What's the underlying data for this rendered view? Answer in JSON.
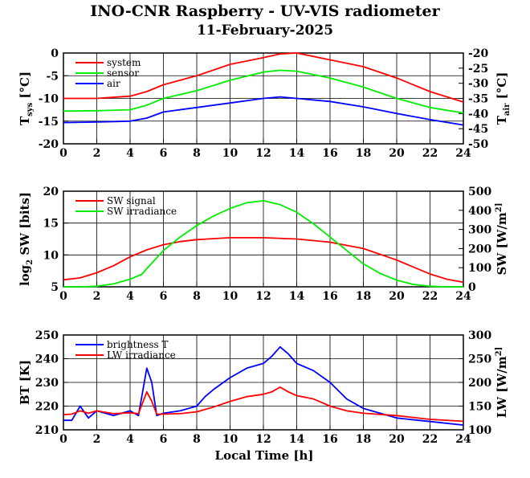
{
  "header": {
    "title": "INO-CNR Raspberry - UV-VIS radiometer",
    "subtitle": "11-February-2025"
  },
  "x_axis": {
    "label": "Local Time [h]",
    "ticks": [
      "0",
      "2",
      "4",
      "6",
      "8",
      "10",
      "12",
      "14",
      "16",
      "18",
      "20",
      "22",
      "24"
    ]
  },
  "chart_data": [
    {
      "type": "line",
      "xlim": [
        0,
        24
      ],
      "ylabel_left": "T_sys [°C]",
      "ylabel_right": "T_air [°C]",
      "ylim_left": [
        -20,
        0
      ],
      "ylim_right": [
        -50,
        -20
      ],
      "yticks_left": [
        "0",
        "-5",
        "-10",
        "-15",
        "-20"
      ],
      "yticks_right": [
        "-20",
        "-25",
        "-30",
        "-35",
        "-40",
        "-45",
        "-50"
      ],
      "grid": true,
      "legend": "top-left",
      "series": [
        {
          "name": "system",
          "color": "#ff0000",
          "axis": "left",
          "x": [
            0,
            2,
            4,
            5,
            6,
            8,
            10,
            12,
            13,
            14,
            16,
            18,
            20,
            22,
            24
          ],
          "y": [
            -10,
            -10,
            -9.5,
            -8.5,
            -7,
            -5,
            -2.5,
            -1,
            -0.2,
            0,
            -1.5,
            -3,
            -5.5,
            -8.5,
            -10.8
          ]
        },
        {
          "name": "sensor",
          "color": "#00ee00",
          "axis": "left",
          "x": [
            0,
            2,
            4,
            5,
            6,
            8,
            10,
            12,
            13,
            14,
            16,
            18,
            20,
            22,
            24
          ],
          "y": [
            -12.8,
            -12.7,
            -12.5,
            -11.5,
            -10,
            -8.3,
            -6,
            -4.2,
            -3.8,
            -4,
            -5.5,
            -7.5,
            -10,
            -12,
            -13.2
          ]
        },
        {
          "name": "air",
          "color": "#0000ff",
          "axis": "right",
          "x": [
            0,
            2,
            4,
            5,
            6,
            8,
            10,
            12,
            13,
            14,
            16,
            18,
            20,
            22,
            24
          ],
          "y": [
            -43,
            -42.8,
            -42.5,
            -41.5,
            -39.5,
            -38,
            -36.5,
            -35,
            -34.5,
            -35,
            -36,
            -37.8,
            -40,
            -42,
            -43.8
          ]
        }
      ]
    },
    {
      "type": "line",
      "xlim": [
        0,
        24
      ],
      "ylabel_left": "log_2 SW [bits]",
      "ylabel_right": "SW [W/m^2]",
      "ylim_left": [
        5,
        20
      ],
      "ylim_right": [
        0,
        500
      ],
      "yticks_left": [
        "20",
        "15",
        "10",
        "5"
      ],
      "yticks_right": [
        "500",
        "400",
        "300",
        "200",
        "100",
        "0"
      ],
      "grid": true,
      "legend": "top-left",
      "series": [
        {
          "name": "SW signal",
          "color": "#ff0000",
          "axis": "left",
          "x": [
            0,
            1,
            2,
            3,
            4,
            5,
            6,
            7,
            8,
            10,
            12,
            14,
            16,
            18,
            20,
            22,
            23,
            24
          ],
          "y": [
            6.1,
            6.4,
            7.2,
            8.3,
            9.7,
            10.8,
            11.6,
            12.1,
            12.4,
            12.7,
            12.7,
            12.5,
            12,
            11,
            9.2,
            7,
            6.2,
            5.7
          ]
        },
        {
          "name": "SW irradiance",
          "color": "#00ee00",
          "axis": "right",
          "x": [
            0,
            1,
            2,
            3,
            4,
            4.7,
            5,
            6,
            7,
            8,
            9,
            10,
            11,
            12,
            12.5,
            13,
            14,
            15,
            16,
            17,
            18,
            19,
            20,
            21,
            22,
            23,
            24
          ],
          "y": [
            0,
            0,
            3,
            15,
            40,
            65,
            95,
            190,
            260,
            320,
            370,
            410,
            440,
            450,
            440,
            430,
            390,
            330,
            260,
            190,
            120,
            70,
            35,
            12,
            3,
            0,
            0
          ]
        }
      ]
    },
    {
      "type": "line",
      "xlim": [
        0,
        24
      ],
      "ylabel_left": "BT [K]",
      "ylabel_right": "LW [W/m^2]",
      "ylim_left": [
        210,
        250
      ],
      "ylim_right": [
        100,
        300
      ],
      "yticks_left": [
        "250",
        "240",
        "230",
        "220",
        "210"
      ],
      "yticks_right": [
        "300",
        "250",
        "200",
        "150",
        "100"
      ],
      "grid": true,
      "legend": "top-left",
      "series": [
        {
          "name": "brightness T",
          "color": "#0000ff",
          "axis": "left",
          "x": [
            0,
            0.5,
            1,
            1.5,
            2,
            3,
            4,
            4.5,
            5,
            5.3,
            5.6,
            6,
            7,
            8,
            8.5,
            9,
            10,
            11,
            12,
            12.5,
            13,
            13.5,
            14,
            15,
            16,
            17,
            18,
            19,
            20,
            22,
            24
          ],
          "y": [
            214,
            214,
            220,
            215,
            218,
            216,
            218,
            216,
            236,
            230,
            216,
            217,
            218,
            220,
            224,
            227,
            232,
            236,
            238,
            241,
            245,
            242,
            238,
            235,
            230,
            223,
            219,
            217,
            215,
            213.5,
            212
          ]
        },
        {
          "name": "LW irradiance",
          "color": "#ff0000",
          "axis": "right",
          "x": [
            0,
            0.5,
            1,
            1.5,
            2,
            3,
            4,
            4.5,
            5,
            5.3,
            5.6,
            6,
            7,
            8,
            9,
            10,
            11,
            12,
            12.5,
            13,
            13.5,
            14,
            15,
            16,
            17,
            18,
            20,
            22,
            24
          ],
          "y": [
            132,
            133,
            140,
            135,
            140,
            134,
            136,
            134,
            180,
            160,
            133,
            133,
            134,
            138,
            148,
            160,
            170,
            175,
            180,
            190,
            180,
            172,
            165,
            150,
            140,
            135,
            130,
            122,
            118
          ]
        }
      ]
    }
  ]
}
